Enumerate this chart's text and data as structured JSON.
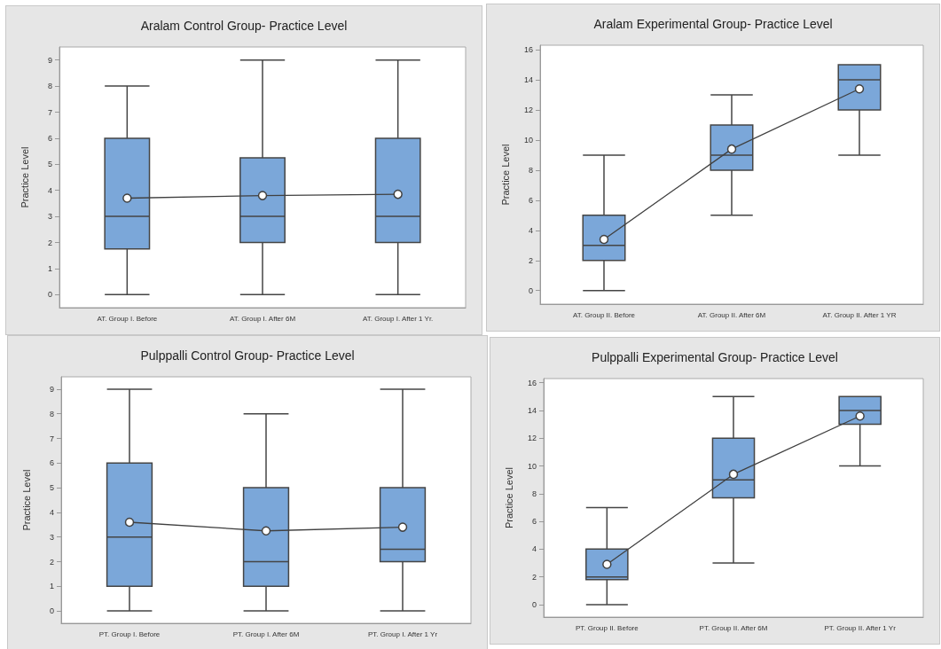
{
  "chart_data": [
    {
      "type": "box",
      "title": "Aralam Control Group- Practice Level",
      "ylabel": "Practice Level",
      "categories": [
        "AT. Group I. Before",
        "AT. Group I. After 6M",
        "AT. Group I. After 1 Yr."
      ],
      "ylim": [
        -0.5,
        9.5
      ],
      "yticks": [
        0,
        1,
        2,
        3,
        4,
        5,
        6,
        7,
        8,
        9
      ],
      "grid": false,
      "series": [
        {
          "color": "#7ba7d9",
          "boxes": [
            {
              "low": 0,
              "q1": 1.75,
              "median": 3,
              "q3": 6,
              "high": 8
            },
            {
              "low": 0,
              "q1": 2,
              "median": 3,
              "q3": 5.25,
              "high": 9
            },
            {
              "low": 0,
              "q1": 2,
              "median": 3,
              "q3": 6,
              "high": 9
            }
          ]
        },
        {
          "type": "line",
          "color": "#404040",
          "marker": "circle",
          "line_style": "solid",
          "values": [
            3.7,
            3.8,
            3.85
          ]
        }
      ]
    },
    {
      "type": "box",
      "title": "Aralam Experimental Group- Practice Level",
      "ylabel": "Practice Level",
      "categories": [
        "AT. Group II. Before",
        "AT. Group II. After 6M",
        "AT. Group II. After 1 YR"
      ],
      "ylim": [
        -0.9,
        16.3
      ],
      "yticks": [
        0,
        2,
        4,
        6,
        8,
        10,
        12,
        14,
        16
      ],
      "grid": false,
      "series": [
        {
          "color": "#7ba7d9",
          "boxes": [
            {
              "low": 0,
              "q1": 2,
              "median": 3,
              "q3": 5,
              "high": 9
            },
            {
              "low": 5,
              "q1": 8,
              "median": 9,
              "q3": 11,
              "high": 13
            },
            {
              "low": 9,
              "q1": 12,
              "median": 14,
              "q3": 15,
              "high": 15
            }
          ]
        },
        {
          "type": "line",
          "color": "#404040",
          "marker": "circle",
          "line_style": "solid",
          "values": [
            3.4,
            9.4,
            13.4
          ]
        }
      ]
    },
    {
      "type": "box",
      "title": "Pulppalli Control Group- Practice Level",
      "ylabel": "Practice Level",
      "categories": [
        "PT. Group I. Before",
        "PT. Group I. After 6M",
        "PT. Group I. After 1 Yr"
      ],
      "ylim": [
        -0.5,
        9.5
      ],
      "yticks": [
        0,
        1,
        2,
        3,
        4,
        5,
        6,
        7,
        8,
        9
      ],
      "grid": false,
      "series": [
        {
          "color": "#7ba7d9",
          "boxes": [
            {
              "low": 0,
              "q1": 1,
              "median": 3,
              "q3": 6,
              "high": 9
            },
            {
              "low": 0,
              "q1": 1,
              "median": 2,
              "q3": 5,
              "high": 8
            },
            {
              "low": 0,
              "q1": 2,
              "median": 2.5,
              "q3": 5,
              "high": 9
            }
          ]
        },
        {
          "type": "line",
          "color": "#404040",
          "marker": "circle",
          "line_style": "solid",
          "values": [
            3.6,
            3.25,
            3.4
          ]
        }
      ]
    },
    {
      "type": "box",
      "title": "Pulppalli Experimental Group- Practice Level",
      "ylabel": "Practice Level",
      "categories": [
        "PT. Group II. Before",
        "PT. Group II. After 6M",
        "PT. Group II. After 1 Yr"
      ],
      "ylim": [
        -0.9,
        16.3
      ],
      "yticks": [
        0,
        2,
        4,
        6,
        8,
        10,
        12,
        14,
        16
      ],
      "grid": false,
      "series": [
        {
          "color": "#7ba7d9",
          "boxes": [
            {
              "low": 0,
              "q1": 1.8,
              "median": 2,
              "q3": 4,
              "high": 7
            },
            {
              "low": 3,
              "q1": 7.7,
              "median": 9,
              "q3": 12,
              "high": 15
            },
            {
              "low": 10,
              "q1": 13,
              "median": 14,
              "q3": 15,
              "high": 15
            }
          ]
        },
        {
          "type": "line",
          "color": "#404040",
          "marker": "circle",
          "line_style": "solid",
          "values": [
            2.9,
            9.4,
            13.6
          ]
        }
      ]
    }
  ]
}
